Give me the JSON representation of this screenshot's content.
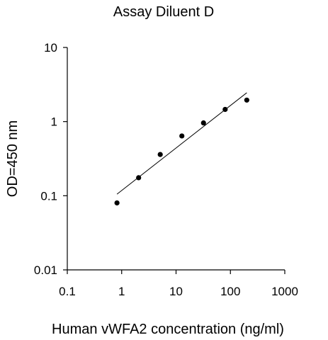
{
  "chart_data": {
    "type": "scatter",
    "title": "Assay Diluent D",
    "xlabel": "Human vWFA2 concentration (ng/ml)",
    "ylabel": "OD=450 nm",
    "x_scale": "log",
    "y_scale": "log",
    "xlim": [
      0.1,
      1000
    ],
    "ylim": [
      0.01,
      10
    ],
    "x_ticks": [
      "0.1",
      "1",
      "10",
      "100",
      "1000"
    ],
    "y_ticks": [
      "0.01",
      "0.1",
      "1",
      "10"
    ],
    "grid": false,
    "legend": "none",
    "series": [
      {
        "points": [
          {
            "x": 0.82,
            "y": 0.08
          },
          {
            "x": 2.05,
            "y": 0.175
          },
          {
            "x": 5.12,
            "y": 0.36
          },
          {
            "x": 12.8,
            "y": 0.64
          },
          {
            "x": 32,
            "y": 0.96
          },
          {
            "x": 80,
            "y": 1.46
          },
          {
            "x": 200,
            "y": 1.95
          }
        ]
      }
    ],
    "trendline": {
      "type": "line",
      "x": [
        0.82,
        200
      ],
      "y": [
        0.105,
        2.45
      ]
    },
    "colors": {
      "marker": "#000000",
      "line": "#000000",
      "axis": "#000000"
    }
  }
}
